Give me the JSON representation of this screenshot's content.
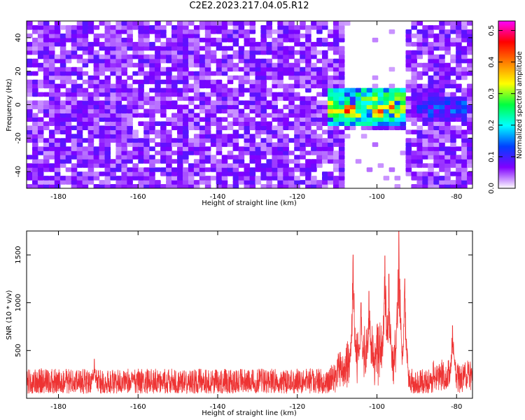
{
  "title": "C2E2.2023.217.04.05.R12",
  "chart_data": [
    {
      "type": "heatmap",
      "xlabel": "Height of straight line (km)",
      "ylabel": "Frequency (Hz)",
      "xlim": [
        -188,
        -76
      ],
      "ylim": [
        -50,
        50
      ],
      "xticks": [
        -180,
        -160,
        -140,
        -120,
        -100,
        -80
      ],
      "yticks": [
        -40,
        -20,
        0,
        20,
        40
      ],
      "colorbar": {
        "label": "Normalized spectral amplitude",
        "range": [
          0.0,
          0.53
        ],
        "ticks": [
          "0.0",
          "0.1",
          "0.2",
          "0.3",
          "0.4",
          "0.5"
        ],
        "colors": [
          "#ffffff",
          "#8000ff",
          "#0040ff",
          "#00ffff",
          "#00ff40",
          "#ffff00",
          "#ff8000",
          "#ff0000",
          "#ff00ff"
        ]
      },
      "background_noise_level": 0.06,
      "blank_regions": [
        {
          "x": [
            -108.5,
            -93
          ],
          "y": [
            -50,
            -14
          ]
        },
        {
          "x": [
            -108.5,
            -93
          ],
          "y": [
            10,
            50
          ]
        }
      ],
      "signal_band": [
        {
          "x": [
            -112,
            -93
          ],
          "y": [
            -12,
            10
          ],
          "peak": 0.5
        },
        {
          "x": [
            -90,
            -77
          ],
          "y": [
            -10,
            6
          ],
          "peak": 0.22
        }
      ],
      "hot_spots": [
        {
          "x": -107.5,
          "y": -3,
          "value": 0.5
        },
        {
          "x": -99.5,
          "y": -4,
          "value": 0.48
        },
        {
          "x": -96.5,
          "y": -1,
          "value": 0.45
        }
      ]
    },
    {
      "type": "line",
      "xlabel": "Height of straight line (km)",
      "ylabel": "SNR (10 * v/v)",
      "xlim": [
        -188,
        -76
      ],
      "ylim": [
        0,
        1750
      ],
      "xticks": [
        -180,
        -160,
        -140,
        -120,
        -100,
        -80
      ],
      "yticks": [
        500,
        1000,
        1500
      ],
      "color": "#ee3333",
      "baseline": {
        "min": 50,
        "max": 310
      },
      "peaks": [
        {
          "x": -171,
          "value": 410
        },
        {
          "x": -106,
          "value": 1500
        },
        {
          "x": -104,
          "value": 1000
        },
        {
          "x": -102,
          "value": 1120
        },
        {
          "x": -98,
          "value": 1490
        },
        {
          "x": -97,
          "value": 1300
        },
        {
          "x": -94.5,
          "value": 1750
        },
        {
          "x": -93,
          "value": 1250
        },
        {
          "x": -81,
          "value": 760
        }
      ]
    }
  ]
}
